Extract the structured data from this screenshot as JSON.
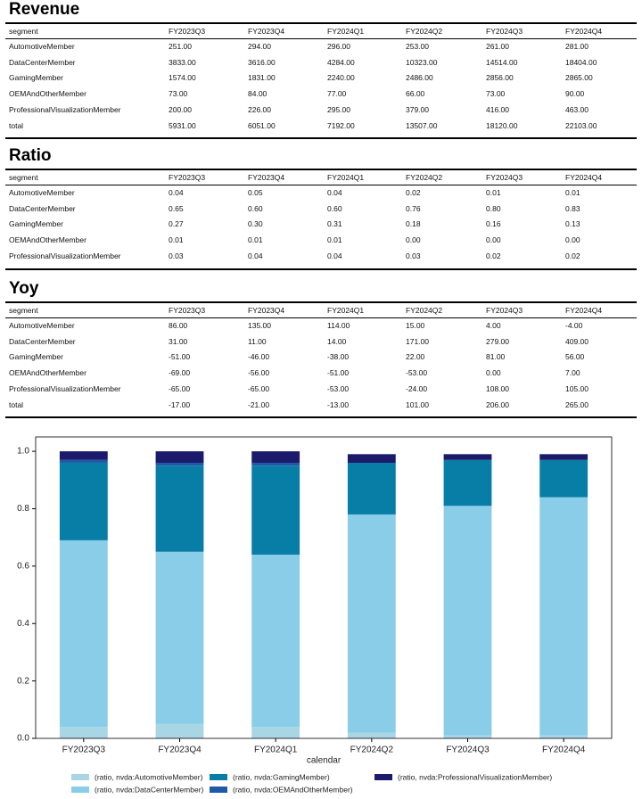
{
  "tables": [
    {
      "title": "Revenue",
      "header": [
        "segment",
        "FY2023Q3",
        "FY2023Q4",
        "FY2024Q1",
        "FY2024Q2",
        "FY2024Q3",
        "FY2024Q4"
      ],
      "rows": [
        [
          "AutomotiveMember",
          "251.00",
          "294.00",
          "296.00",
          "253.00",
          "261.00",
          "281.00"
        ],
        [
          "DataCenterMember",
          "3833.00",
          "3616.00",
          "4284.00",
          "10323.00",
          "14514.00",
          "18404.00"
        ],
        [
          "GamingMember",
          "1574.00",
          "1831.00",
          "2240.00",
          "2486.00",
          "2856.00",
          "2865.00"
        ],
        [
          "OEMAndOtherMember",
          "73.00",
          "84.00",
          "77.00",
          "66.00",
          "73.00",
          "90.00"
        ],
        [
          "ProfessionalVisualizationMember",
          "200.00",
          "226.00",
          "295.00",
          "379.00",
          "416.00",
          "463.00"
        ],
        [
          "total",
          "5931.00",
          "6051.00",
          "7192.00",
          "13507.00",
          "18120.00",
          "22103.00"
        ]
      ]
    },
    {
      "title": "Ratio",
      "header": [
        "segment",
        "FY2023Q3",
        "FY2023Q4",
        "FY2024Q1",
        "FY2024Q2",
        "FY2024Q3",
        "FY2024Q4"
      ],
      "rows": [
        [
          "AutomotiveMember",
          "0.04",
          "0.05",
          "0.04",
          "0.02",
          "0.01",
          "0.01"
        ],
        [
          "DataCenterMember",
          "0.65",
          "0.60",
          "0.60",
          "0.76",
          "0.80",
          "0.83"
        ],
        [
          "GamingMember",
          "0.27",
          "0.30",
          "0.31",
          "0.18",
          "0.16",
          "0.13"
        ],
        [
          "OEMAndOtherMember",
          "0.01",
          "0.01",
          "0.01",
          "0.00",
          "0.00",
          "0.00"
        ],
        [
          "ProfessionalVisualizationMember",
          "0.03",
          "0.04",
          "0.04",
          "0.03",
          "0.02",
          "0.02"
        ]
      ]
    },
    {
      "title": "Yoy",
      "header": [
        "segment",
        "FY2023Q3",
        "FY2023Q4",
        "FY2024Q1",
        "FY2024Q2",
        "FY2024Q3",
        "FY2024Q4"
      ],
      "rows": [
        [
          "AutomotiveMember",
          "86.00",
          "135.00",
          "114.00",
          "15.00",
          "4.00",
          "-4.00"
        ],
        [
          "DataCenterMember",
          "31.00",
          "11.00",
          "14.00",
          "171.00",
          "279.00",
          "409.00"
        ],
        [
          "GamingMember",
          "-51.00",
          "-46.00",
          "-38.00",
          "22.00",
          "81.00",
          "56.00"
        ],
        [
          "OEMAndOtherMember",
          "-69.00",
          "-56.00",
          "-51.00",
          "-53.00",
          "0.00",
          "7.00"
        ],
        [
          "ProfessionalVisualizationMember",
          "-65.00",
          "-65.00",
          "-53.00",
          "-24.00",
          "108.00",
          "105.00"
        ],
        [
          "total",
          "-17.00",
          "-21.00",
          "-13.00",
          "101.00",
          "206.00",
          "265.00"
        ]
      ]
    }
  ],
  "chart_data": {
    "type": "stacked_bar",
    "x_label": "calendar",
    "categories": [
      "FY2023Q3",
      "FY2023Q4",
      "FY2024Q1",
      "FY2024Q2",
      "FY2024Q3",
      "FY2024Q4"
    ],
    "series": [
      {
        "name": "(ratio, nvda:AutomotiveMember)",
        "color": "#a9d6e5",
        "values": [
          0.04,
          0.05,
          0.04,
          0.02,
          0.01,
          0.01
        ]
      },
      {
        "name": "(ratio, nvda:DataCenterMember)",
        "color": "#89cde9",
        "values": [
          0.65,
          0.6,
          0.6,
          0.76,
          0.8,
          0.83
        ]
      },
      {
        "name": "(ratio, nvda:GamingMember)",
        "color": "#087ea6",
        "values": [
          0.27,
          0.3,
          0.31,
          0.18,
          0.16,
          0.13
        ]
      },
      {
        "name": "(ratio, nvda:OEMAndOtherMember)",
        "color": "#1f5aa6",
        "values": [
          0.01,
          0.01,
          0.01,
          0.0,
          0.0,
          0.0
        ]
      },
      {
        "name": "(ratio, nvda:ProfessionalVisualizationMember)",
        "color": "#1b1a6b",
        "values": [
          0.03,
          0.04,
          0.04,
          0.03,
          0.02,
          0.02
        ]
      }
    ],
    "ylim": [
      0,
      1.05
    ],
    "yticks": [
      {
        "value": 0,
        "label": "0.0"
      },
      0.2,
      0.4,
      0.6,
      0.8,
      {
        "value": 1,
        "label": "1.0"
      }
    ],
    "grid": false
  }
}
